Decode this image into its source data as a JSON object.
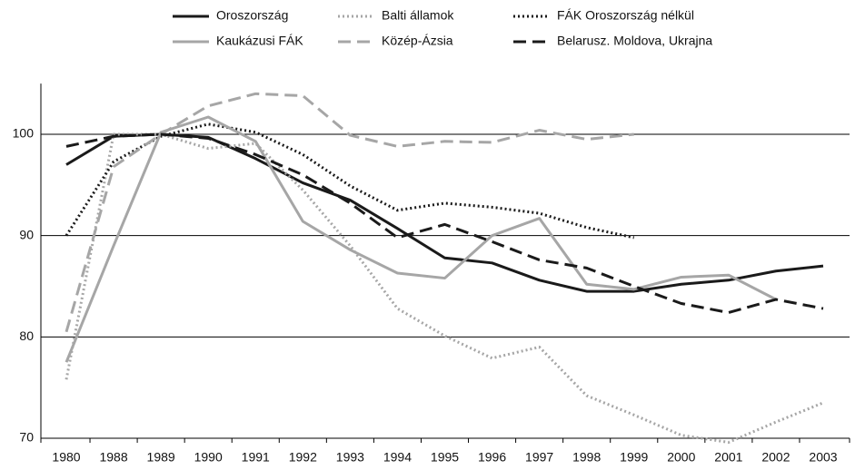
{
  "chart_data": {
    "type": "line",
    "categories": [
      "1980",
      "1988",
      "1989",
      "1990",
      "1991",
      "1992",
      "1993",
      "1994",
      "1995",
      "1996",
      "1997",
      "1998",
      "1999",
      "2000",
      "2001",
      "2002",
      "2003"
    ],
    "ylim": [
      70,
      105
    ],
    "yticks": [
      70,
      80,
      90,
      100
    ],
    "grid": true,
    "series": [
      {
        "name": "Oroszország",
        "color": "#1a1a1a",
        "style": "solid",
        "values": [
          97.0,
          99.8,
          100,
          99.7,
          97.6,
          95.2,
          93.5,
          90.7,
          87.8,
          87.3,
          85.6,
          84.5,
          84.5,
          85.2,
          85.6,
          86.5,
          87.0
        ]
      },
      {
        "name": "Balti államok",
        "color": "#a6a6a6",
        "style": "dotted",
        "values": [
          75.8,
          100,
          100,
          98.6,
          99.1,
          94.5,
          89.0,
          82.8,
          80.1,
          77.9,
          79.0,
          74.2,
          72.3,
          70.3,
          69.6,
          71.6,
          73.5
        ]
      },
      {
        "name": "FÁK Oroszország nélkül",
        "color": "#1a1a1a",
        "style": "dotted",
        "values": [
          90.0,
          97.3,
          99.8,
          101.0,
          100.2,
          98.0,
          94.9,
          92.5,
          93.2,
          92.8,
          92.2,
          90.8,
          89.8,
          null,
          null,
          null,
          null
        ]
      },
      {
        "name": "Kaukázusi FÁK",
        "color": "#a6a6a6",
        "style": "solid",
        "values": [
          77.5,
          89.0,
          100.2,
          101.7,
          99.3,
          91.4,
          88.6,
          86.3,
          85.8,
          90.0,
          91.7,
          85.2,
          84.7,
          85.9,
          86.1,
          83.7,
          null
        ]
      },
      {
        "name": "Közép-Ázsia",
        "color": "#a6a6a6",
        "style": "dashed",
        "values": [
          80.5,
          96.8,
          100,
          102.8,
          104.0,
          103.8,
          99.9,
          98.8,
          99.3,
          99.2,
          100.4,
          99.5,
          100.0,
          null,
          null,
          null,
          null
        ]
      },
      {
        "name": "Belarusz. Moldova, Ukrajna",
        "color": "#1a1a1a",
        "style": "dashed",
        "values": [
          98.8,
          99.8,
          100,
          99.6,
          98.0,
          96.0,
          93.2,
          89.8,
          91.1,
          89.4,
          87.6,
          86.8,
          85.0,
          83.3,
          82.4,
          83.7,
          82.8
        ]
      }
    ]
  }
}
